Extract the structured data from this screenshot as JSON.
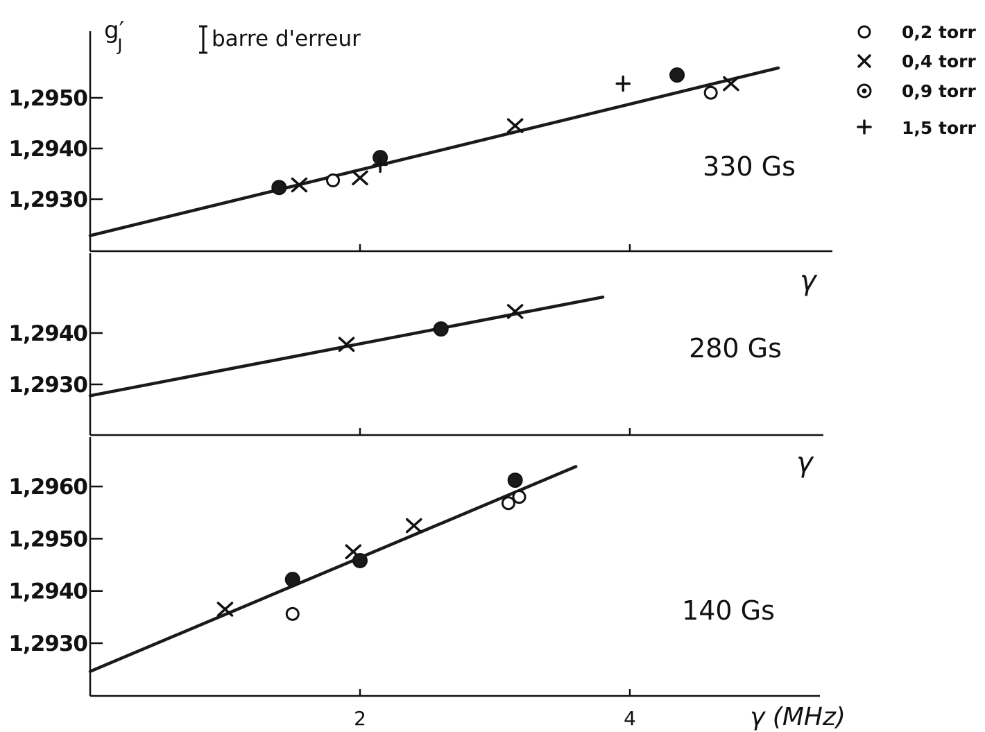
{
  "chart_data": [
    {
      "type": "scatter",
      "panel": "top",
      "annotation": "330 Gs",
      "ylabel": "g′J",
      "xlabel": "γ",
      "xlim": [
        0,
        5.5
      ],
      "yticks": [
        1.293,
        1.294,
        1.295
      ],
      "ytick_labels": [
        "1,2930",
        "1,2940",
        "1,2950"
      ],
      "xticks": [
        2,
        4
      ],
      "fit_line": {
        "x": [
          0,
          5.1
        ],
        "y": [
          1.29228,
          1.29559
        ]
      },
      "series": [
        {
          "name": "0,2 torr",
          "marker": "open-circle",
          "points": [
            [
              1.8,
              1.29337
            ],
            [
              4.6,
              1.2951
            ]
          ]
        },
        {
          "name": "0,4 torr",
          "marker": "x",
          "points": [
            [
              1.55,
              1.29328
            ],
            [
              2.0,
              1.29342
            ],
            [
              3.15,
              1.29445
            ],
            [
              4.75,
              1.29528
            ]
          ]
        },
        {
          "name": "0,9 torr",
          "marker": "filled-circle",
          "points": [
            [
              1.4,
              1.29323
            ],
            [
              2.15,
              1.29382
            ],
            [
              4.35,
              1.29545
            ]
          ]
        },
        {
          "name": "1,5 torr",
          "marker": "plus",
          "points": [
            [
              2.15,
              1.29368
            ],
            [
              3.95,
              1.29528
            ]
          ]
        }
      ]
    },
    {
      "type": "scatter",
      "panel": "middle",
      "annotation": "280 Gs",
      "xlabel": "γ",
      "xlim": [
        0,
        5.5
      ],
      "yticks": [
        1.293,
        1.294
      ],
      "ytick_labels": [
        "1,2930",
        "1,2940"
      ],
      "xticks": [
        2,
        4
      ],
      "fit_line": {
        "x": [
          0,
          3.8
        ],
        "y": [
          1.29278,
          1.2947
        ]
      },
      "series": [
        {
          "name": "0,4 torr",
          "marker": "x",
          "points": [
            [
              1.9,
              1.29378
            ],
            [
              3.15,
              1.29442
            ]
          ]
        },
        {
          "name": "0,9 torr",
          "marker": "filled-circle",
          "points": [
            [
              2.6,
              1.29408
            ]
          ]
        }
      ]
    },
    {
      "type": "scatter",
      "panel": "bottom",
      "annotation": "140 Gs",
      "xlabel": "γ (MHz)",
      "xlim": [
        0,
        5.5
      ],
      "yticks": [
        1.293,
        1.294,
        1.295,
        1.296
      ],
      "ytick_labels": [
        "1,2930",
        "1,2940",
        "1,2950",
        "1,2960"
      ],
      "xticks": [
        2,
        4
      ],
      "xtick_labels": [
        "2",
        "4"
      ],
      "fit_line": {
        "x": [
          0,
          3.6
        ],
        "y": [
          1.29246,
          1.29638
        ]
      },
      "series": [
        {
          "name": "0,2 torr",
          "marker": "open-circle",
          "points": [
            [
              1.5,
              1.29356
            ],
            [
              3.1,
              1.29568
            ],
            [
              3.18,
              1.2958
            ]
          ]
        },
        {
          "name": "0,4 torr",
          "marker": "x",
          "points": [
            [
              1.0,
              1.29365
            ],
            [
              1.95,
              1.29475
            ],
            [
              2.4,
              1.29525
            ]
          ]
        },
        {
          "name": "0,9 torr",
          "marker": "filled-circle",
          "points": [
            [
              1.5,
              1.29422
            ],
            [
              2.0,
              1.29458
            ],
            [
              3.15,
              1.29612
            ]
          ]
        }
      ]
    }
  ],
  "header": {
    "ylabel_main": "g",
    "ylabel_prime": "′",
    "ylabel_sub": "J",
    "errorbar_label": "barre d'erreur"
  },
  "legend": [
    {
      "label": "0,2 torr",
      "marker": "open-circle"
    },
    {
      "label": "0,4 torr",
      "marker": "x"
    },
    {
      "label": "0,9 torr",
      "marker": "dotted-circle"
    },
    {
      "label": "1,5 torr",
      "marker": "plus"
    }
  ]
}
